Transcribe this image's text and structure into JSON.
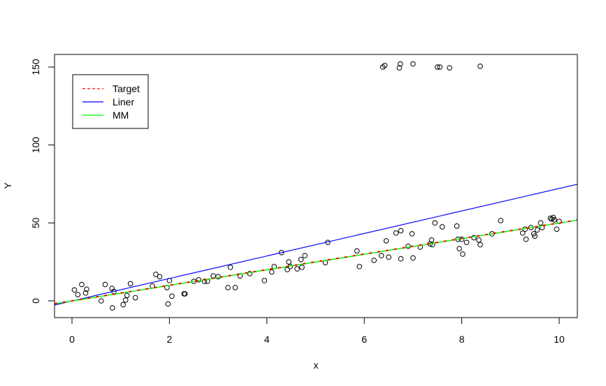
{
  "chart_data": {
    "type": "scatter",
    "title": "",
    "xlabel": "x",
    "ylabel": "Y",
    "xlim": [
      -0.36,
      10.37
    ],
    "ylim": [
      -10.7,
      158.3
    ],
    "x_ticks": [
      0,
      2,
      4,
      6,
      8,
      10
    ],
    "y_ticks": [
      0,
      50,
      100,
      150
    ],
    "grid": false,
    "legend": {
      "position": "top-left",
      "entries": [
        {
          "label": "Target",
          "color": "#ff0000",
          "style": "dashed"
        },
        {
          "label": "Liner",
          "color": "#0000ff",
          "style": "solid"
        },
        {
          "label": "MM",
          "color": "#00ff00",
          "style": "solid"
        }
      ]
    },
    "lines": [
      {
        "name": "Liner",
        "color": "#0000ff",
        "intercept": -0.1,
        "slope": 7.22
      },
      {
        "name": "MM",
        "color": "#00ff00",
        "intercept": -0.1,
        "slope": 5.0
      },
      {
        "name": "Target",
        "color": "#ff0000",
        "intercept": 0.0,
        "slope": 5.0
      }
    ],
    "points": [
      [
        0.05,
        7.0
      ],
      [
        0.12,
        4.0
      ],
      [
        0.2,
        10.5
      ],
      [
        0.28,
        5.0
      ],
      [
        0.3,
        7.5
      ],
      [
        0.6,
        0.0
      ],
      [
        0.68,
        10.5
      ],
      [
        0.82,
        8.0
      ],
      [
        0.83,
        -4.5
      ],
      [
        0.86,
        6.0
      ],
      [
        1.05,
        -2.5
      ],
      [
        1.1,
        0.5
      ],
      [
        1.13,
        3.5
      ],
      [
        1.2,
        11.0
      ],
      [
        1.3,
        2.0
      ],
      [
        1.65,
        9.5
      ],
      [
        1.72,
        17.0
      ],
      [
        1.8,
        15.5
      ],
      [
        1.95,
        8.5
      ],
      [
        1.97,
        -2.0
      ],
      [
        2.0,
        13.0
      ],
      [
        2.05,
        3.0
      ],
      [
        2.3,
        4.5
      ],
      [
        2.32,
        4.5
      ],
      [
        2.5,
        12.5
      ],
      [
        2.6,
        13.5
      ],
      [
        2.72,
        12.5
      ],
      [
        2.78,
        12.5
      ],
      [
        2.9,
        16.0
      ],
      [
        3.0,
        15.5
      ],
      [
        3.2,
        8.5
      ],
      [
        3.25,
        21.5
      ],
      [
        3.35,
        8.5
      ],
      [
        3.45,
        16.0
      ],
      [
        3.65,
        17.5
      ],
      [
        3.95,
        13.0
      ],
      [
        4.1,
        18.5
      ],
      [
        4.15,
        22.0
      ],
      [
        4.3,
        31.0
      ],
      [
        4.42,
        20.0
      ],
      [
        4.45,
        25.0
      ],
      [
        4.48,
        22.0
      ],
      [
        4.62,
        20.5
      ],
      [
        4.7,
        26.5
      ],
      [
        4.72,
        21.5
      ],
      [
        4.78,
        29.0
      ],
      [
        5.2,
        24.5
      ],
      [
        5.25,
        37.5
      ],
      [
        5.85,
        32.0
      ],
      [
        5.9,
        22.0
      ],
      [
        6.2,
        26.0
      ],
      [
        6.35,
        29.0
      ],
      [
        6.45,
        38.5
      ],
      [
        6.5,
        28.0
      ],
      [
        6.65,
        43.5
      ],
      [
        6.75,
        45.0
      ],
      [
        6.75,
        27.0
      ],
      [
        6.9,
        35.0
      ],
      [
        6.98,
        43.0
      ],
      [
        7.0,
        27.5
      ],
      [
        7.15,
        34.5
      ],
      [
        7.35,
        36.5
      ],
      [
        7.38,
        39.0
      ],
      [
        7.4,
        36.0
      ],
      [
        7.45,
        50.0
      ],
      [
        7.6,
        47.5
      ],
      [
        7.9,
        48.0
      ],
      [
        7.92,
        39.5
      ],
      [
        7.95,
        33.5
      ],
      [
        8.0,
        39.5
      ],
      [
        8.02,
        30.0
      ],
      [
        8.1,
        37.5
      ],
      [
        8.25,
        40.5
      ],
      [
        8.35,
        39.0
      ],
      [
        8.38,
        36.0
      ],
      [
        8.62,
        43.0
      ],
      [
        8.8,
        51.5
      ],
      [
        9.25,
        43.5
      ],
      [
        9.3,
        46.0
      ],
      [
        9.32,
        39.5
      ],
      [
        9.42,
        47.0
      ],
      [
        9.48,
        43.0
      ],
      [
        9.5,
        41.5
      ],
      [
        9.55,
        45.5
      ],
      [
        9.62,
        50.0
      ],
      [
        9.65,
        47.0
      ],
      [
        9.82,
        53.0
      ],
      [
        9.85,
        52.5
      ],
      [
        9.88,
        53.5
      ],
      [
        9.9,
        52.0
      ],
      [
        9.95,
        46.0
      ],
      [
        10.0,
        51.0
      ],
      [
        6.38,
        150.0
      ],
      [
        6.42,
        151.0
      ],
      [
        6.72,
        149.5
      ],
      [
        6.74,
        152.0
      ],
      [
        7.0,
        152.0
      ],
      [
        7.5,
        150.0
      ],
      [
        7.55,
        150.0
      ],
      [
        7.75,
        149.5
      ],
      [
        8.38,
        150.5
      ]
    ]
  }
}
